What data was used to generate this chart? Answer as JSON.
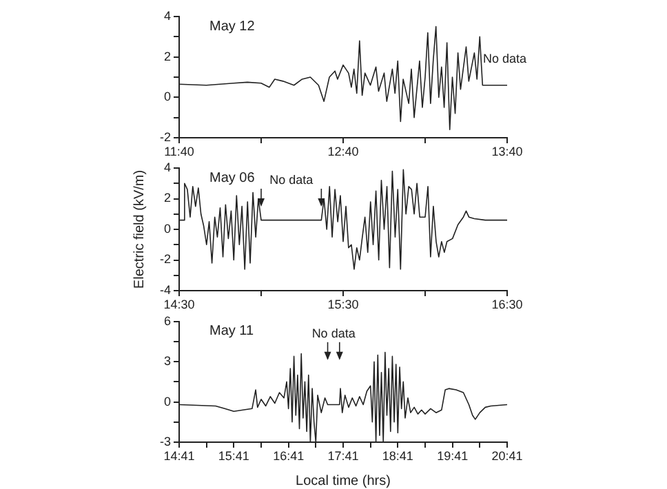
{
  "chart_data": [
    {
      "type": "line",
      "title": "May 12",
      "marker": "none",
      "line_style": "solid",
      "legend": false,
      "x": [
        11.667,
        11.833,
        12.0,
        12.083,
        12.167,
        12.217,
        12.25,
        12.3,
        12.367,
        12.417,
        12.467,
        12.517,
        12.55,
        12.583,
        12.617,
        12.633,
        12.667,
        12.7,
        12.717,
        12.733,
        12.75,
        12.767,
        12.783,
        12.8,
        12.833,
        12.867,
        12.883,
        12.917,
        12.933,
        12.967,
        12.983,
        13.0,
        13.017,
        13.033,
        13.067,
        13.083,
        13.1,
        13.133,
        13.15,
        13.167,
        13.183,
        13.2,
        13.217,
        13.233,
        13.25,
        13.267,
        13.283,
        13.3,
        13.317,
        13.333,
        13.35,
        13.367,
        13.383,
        13.417,
        13.433,
        13.467,
        13.483,
        13.5,
        13.517,
        13.667
      ],
      "series": [
        {
          "color": "#222222",
          "values": [
            0.65,
            0.6,
            0.7,
            0.75,
            0.7,
            0.5,
            0.9,
            0.8,
            0.6,
            0.9,
            1.0,
            0.6,
            -0.2,
            1.0,
            1.3,
            0.9,
            1.6,
            1.2,
            0.5,
            1.4,
            0.2,
            2.8,
            0.1,
            1.2,
            0.6,
            1.5,
            0.3,
            1.2,
            -0.2,
            1.4,
            0.2,
            1.8,
            -1.2,
            0.9,
            -0.3,
            1.4,
            -1.0,
            1.8,
            -0.5,
            1.0,
            3.2,
            -0.3,
            1.9,
            3.5,
            0.0,
            1.5,
            -0.5,
            2.7,
            -1.6,
            1.0,
            -0.8,
            2.2,
            0.4,
            2.5,
            0.8,
            2.2,
            0.9,
            3.0,
            0.6,
            0.6
          ]
        }
      ],
      "xlim": [
        11.667,
        13.667
      ],
      "xticks": [
        {
          "value": 11.667,
          "label": "11:40"
        },
        {
          "value": 12.167,
          "label": null
        },
        {
          "value": 12.667,
          "label": "12:40"
        },
        {
          "value": 13.167,
          "label": null
        },
        {
          "value": 13.667,
          "label": "13:40"
        }
      ],
      "ylim": [
        -2,
        4
      ],
      "yticks": [
        -2,
        {
          "value": -1,
          "label": null
        },
        0,
        {
          "value": 1,
          "label": null
        },
        2,
        {
          "value": 3,
          "label": null
        },
        4
      ],
      "annotations": [
        "No data"
      ]
    },
    {
      "type": "line",
      "title": "May 06",
      "ylabel": "Electric field (kV/m)",
      "marker": "none",
      "line_style": "solid",
      "legend": false,
      "x": [
        14.5,
        14.528,
        14.533,
        14.55,
        14.567,
        14.583,
        14.6,
        14.617,
        14.633,
        14.65,
        14.667,
        14.683,
        14.7,
        14.717,
        14.733,
        14.75,
        14.767,
        14.783,
        14.8,
        14.817,
        14.833,
        14.85,
        14.867,
        14.883,
        14.9,
        14.917,
        14.933,
        14.95,
        14.967,
        14.983,
        15.0,
        15.367,
        15.383,
        15.4,
        15.417,
        15.433,
        15.45,
        15.467,
        15.483,
        15.5,
        15.517,
        15.533,
        15.55,
        15.567,
        15.583,
        15.6,
        15.617,
        15.633,
        15.65,
        15.667,
        15.683,
        15.7,
        15.717,
        15.733,
        15.75,
        15.767,
        15.783,
        15.8,
        15.817,
        15.833,
        15.85,
        15.867,
        15.883,
        15.9,
        15.917,
        15.933,
        15.95,
        15.967,
        16.0,
        16.017,
        16.033,
        16.05,
        16.067,
        16.083,
        16.1,
        16.117,
        16.133,
        16.167,
        16.2,
        16.233,
        16.25,
        16.267,
        16.3,
        16.367,
        16.5
      ],
      "series": [
        {
          "color": "#222222",
          "values": [
            0.6,
            0.6,
            3.0,
            2.6,
            0.8,
            2.8,
            1.5,
            2.7,
            1.0,
            0.2,
            -1.0,
            0.5,
            -2.2,
            0.8,
            -0.5,
            1.4,
            -1.8,
            1.6,
            -0.6,
            1.2,
            -2.0,
            2.2,
            -1.0,
            1.5,
            -2.6,
            1.8,
            -2.2,
            2.4,
            -0.5,
            2.0,
            0.6,
            0.6,
            2.0,
            0.0,
            2.8,
            -0.5,
            2.6,
            0.5,
            2.2,
            -0.8,
            1.5,
            -1.2,
            -1.0,
            -2.6,
            -1.2,
            -2.0,
            -0.5,
            0.8,
            -1.5,
            1.8,
            -1.0,
            2.5,
            -2.0,
            3.2,
            0.0,
            2.8,
            -2.5,
            3.8,
            -0.5,
            2.6,
            -2.6,
            3.9,
            1.0,
            2.8,
            2.6,
            1.0,
            3.0,
            0.8,
            0.8,
            2.8,
            -1.8,
            1.5,
            -0.8,
            -1.8,
            -0.8,
            -1.5,
            -0.8,
            -0.6,
            0.3,
            0.8,
            1.2,
            0.8,
            0.7,
            0.6,
            0.6
          ]
        }
      ],
      "xlim": [
        14.5,
        16.5
      ],
      "xticks": [
        {
          "value": 14.5,
          "label": "14:30"
        },
        {
          "value": 15,
          "label": null
        },
        {
          "value": 15.5,
          "label": "15:30"
        },
        {
          "value": 16,
          "label": null
        },
        {
          "value": 16.5,
          "label": "16:30"
        }
      ],
      "ylim": [
        -4,
        4
      ],
      "yticks": [
        -4,
        {
          "value": -3,
          "label": null
        },
        -2,
        {
          "value": -1,
          "label": null
        },
        0,
        {
          "value": 1,
          "label": null
        },
        2,
        {
          "value": 3,
          "label": null
        },
        4
      ],
      "annotations": [
        "No data"
      ]
    },
    {
      "type": "line",
      "title": "May 11",
      "xlabel": "Local time (hrs)",
      "marker": "none",
      "line_style": "solid",
      "legend": false,
      "x": [
        14.683,
        15.35,
        15.517,
        15.683,
        15.85,
        16.017,
        16.083,
        16.117,
        16.183,
        16.267,
        16.35,
        16.433,
        16.517,
        16.6,
        16.65,
        16.683,
        16.717,
        16.75,
        16.783,
        16.817,
        16.85,
        16.883,
        16.917,
        16.95,
        16.983,
        17.017,
        17.05,
        17.083,
        17.117,
        17.15,
        17.183,
        17.217,
        17.283,
        17.35,
        17.4,
        17.617,
        17.633,
        17.667,
        17.717,
        17.783,
        17.85,
        17.917,
        17.983,
        18.05,
        18.117,
        18.183,
        18.217,
        18.25,
        18.283,
        18.317,
        18.35,
        18.383,
        18.417,
        18.45,
        18.483,
        18.517,
        18.55,
        18.583,
        18.617,
        18.65,
        18.683,
        18.717,
        18.75,
        18.783,
        18.817,
        18.867,
        18.917,
        18.983,
        19.05,
        19.117,
        19.183,
        19.283,
        19.383,
        19.483,
        19.55,
        19.617,
        19.75,
        19.883,
        19.983,
        20.05,
        20.1,
        20.183,
        20.283,
        20.383,
        20.683
      ],
      "series": [
        {
          "color": "#222222",
          "values": [
            -0.2,
            -0.3,
            -0.5,
            -0.7,
            -0.6,
            -0.5,
            0.9,
            -0.4,
            0.2,
            -0.3,
            0.4,
            -0.1,
            0.7,
            0.3,
            1.5,
            -0.5,
            2.5,
            -1.5,
            3.4,
            -1.0,
            2.0,
            -2.0,
            3.6,
            -1.2,
            1.5,
            -2.2,
            2.0,
            -3.0,
            1.0,
            -1.5,
            -3.0,
            0.5,
            -0.8,
            0.3,
            -0.2,
            -0.2,
            1.0,
            -0.8,
            0.5,
            -0.4,
            0.3,
            -0.3,
            0.4,
            -0.2,
            0.8,
            1.2,
            -1.5,
            3.0,
            -3.0,
            3.5,
            -2.5,
            2.2,
            -3.0,
            3.7,
            -1.0,
            2.5,
            -2.2,
            3.4,
            -1.5,
            2.8,
            -2.3,
            2.6,
            -0.5,
            1.5,
            -1.2,
            0.3,
            -0.8,
            -0.4,
            -0.9,
            -0.6,
            -0.9,
            -0.5,
            -0.8,
            -0.6,
            0.9,
            1.0,
            0.9,
            0.7,
            -0.2,
            -1.0,
            -1.3,
            -0.8,
            -0.4,
            -0.3,
            -0.2
          ]
        }
      ],
      "xlim": [
        14.683,
        20.683
      ],
      "xticks": [
        {
          "value": 14.683,
          "label": "14:41"
        },
        {
          "value": 15.183,
          "label": null
        },
        {
          "value": 15.683,
          "label": "15:41"
        },
        {
          "value": 16.183,
          "label": null
        },
        {
          "value": 16.683,
          "label": "16:41"
        },
        {
          "value": 17.183,
          "label": null
        },
        {
          "value": 17.683,
          "label": "17:41"
        },
        {
          "value": 18.183,
          "label": null
        },
        {
          "value": 18.683,
          "label": "18:41"
        },
        {
          "value": 19.183,
          "label": null
        },
        {
          "value": 19.683,
          "label": "19:41"
        },
        {
          "value": 20.183,
          "label": null
        },
        {
          "value": 20.683,
          "label": "20:41"
        }
      ],
      "ylim": [
        -3,
        6
      ],
      "yticks": [
        -3,
        {
          "value": -1.5,
          "label": null
        },
        0,
        {
          "value": 1.5,
          "label": null
        },
        3,
        {
          "value": 4.5,
          "label": null
        },
        6
      ],
      "annotations": [
        "No data"
      ]
    }
  ]
}
